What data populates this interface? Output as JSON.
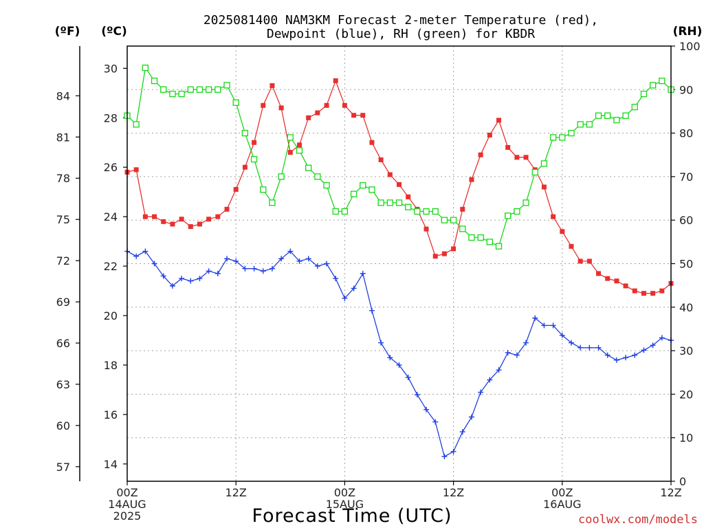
{
  "title_lines": [
    "2025081400 NAM3KM Forecast 2-meter Temperature (red),",
    "Dewpoint (blue), RH (green) for KBDR"
  ],
  "units": {
    "fahrenheit": "(ºF)",
    "celsius": "(ºC)",
    "rh": "(RH)"
  },
  "x_axis": {
    "label": "Forecast Time (UTC)",
    "ticks": [
      {
        "hour": 0,
        "lines": [
          "00Z",
          "14AUG",
          "2025"
        ]
      },
      {
        "hour": 12,
        "lines": [
          "12Z"
        ]
      },
      {
        "hour": 24,
        "lines": [
          "00Z",
          "15AUG"
        ]
      },
      {
        "hour": 36,
        "lines": [
          "12Z"
        ]
      },
      {
        "hour": 48,
        "lines": [
          "00Z",
          "16AUG"
        ]
      },
      {
        "hour": 60,
        "lines": [
          "12Z"
        ]
      }
    ]
  },
  "credit": "coolwx.com/models",
  "colors": {
    "temperature": "#e83030",
    "dewpoint": "#1f3fe0",
    "rh": "#16d816"
  },
  "chart_data": {
    "type": "line",
    "x": [
      0,
      1,
      2,
      3,
      4,
      5,
      6,
      7,
      8,
      9,
      10,
      11,
      12,
      13,
      14,
      15,
      16,
      17,
      18,
      19,
      20,
      21,
      22,
      23,
      24,
      25,
      26,
      27,
      28,
      29,
      30,
      31,
      32,
      33,
      34,
      35,
      36,
      37,
      38,
      39,
      40,
      41,
      42,
      43,
      44,
      45,
      46,
      47,
      48,
      49,
      50,
      51,
      52,
      53,
      54,
      55,
      56,
      57,
      58,
      59,
      60
    ],
    "celsius_ticks": [
      14,
      16,
      18,
      20,
      22,
      24,
      26,
      28,
      30
    ],
    "fahrenheit_ticks": [
      57,
      60,
      63,
      66,
      69,
      72,
      75,
      78,
      81,
      84
    ],
    "rh_ticks": [
      0,
      10,
      20,
      30,
      40,
      50,
      60,
      70,
      80,
      90,
      100
    ],
    "celsius_range": [
      13.3,
      30.9
    ],
    "rh_range": [
      0,
      100
    ],
    "series": [
      {
        "name": "Temperature",
        "unit": "C",
        "marker": "filled-square",
        "values": [
          25.8,
          25.9,
          24.0,
          24.0,
          23.8,
          23.7,
          23.9,
          23.6,
          23.7,
          23.9,
          24.0,
          24.3,
          25.1,
          26.0,
          27.0,
          28.5,
          29.3,
          28.4,
          26.6,
          26.9,
          28.0,
          28.2,
          28.5,
          29.5,
          28.5,
          28.1,
          28.1,
          27.0,
          26.3,
          25.7,
          25.3,
          24.8,
          24.3,
          23.5,
          22.4,
          22.5,
          22.7,
          24.3,
          25.5,
          26.5,
          27.3,
          27.9,
          26.8,
          26.4,
          26.4,
          25.9,
          25.2,
          24.0,
          23.4,
          22.8,
          22.2,
          22.2,
          21.7,
          21.5,
          21.4,
          21.2,
          21.0,
          20.9,
          20.9,
          21.0,
          21.3
        ]
      },
      {
        "name": "Dewpoint",
        "unit": "C",
        "marker": "plus",
        "values": [
          22.6,
          22.4,
          22.6,
          22.1,
          21.6,
          21.2,
          21.5,
          21.4,
          21.5,
          21.8,
          21.7,
          22.3,
          22.2,
          21.9,
          21.9,
          21.8,
          21.9,
          22.3,
          22.6,
          22.2,
          22.3,
          22.0,
          22.1,
          21.5,
          20.7,
          21.1,
          21.7,
          20.2,
          18.9,
          18.3,
          18.0,
          17.5,
          16.8,
          16.2,
          15.7,
          14.3,
          14.5,
          15.3,
          15.9,
          16.9,
          17.4,
          17.8,
          18.5,
          18.4,
          18.9,
          19.9,
          19.6,
          19.6,
          19.2,
          18.9,
          18.7,
          18.7,
          18.7,
          18.4,
          18.2,
          18.3,
          18.4,
          18.6,
          18.8,
          19.1,
          19.0
        ]
      },
      {
        "name": "RH",
        "unit": "%",
        "marker": "open-square",
        "values": [
          84,
          82,
          95,
          92,
          90,
          89,
          89,
          90,
          90,
          90,
          90,
          91,
          87,
          80,
          74,
          67,
          64,
          70,
          79,
          76,
          72,
          70,
          68,
          62,
          62,
          66,
          68,
          67,
          64,
          64,
          64,
          63,
          62,
          62,
          62,
          60,
          60,
          58,
          56,
          56,
          55,
          54,
          61,
          62,
          64,
          71,
          73,
          79,
          79,
          80,
          82,
          82,
          84,
          84,
          83,
          84,
          86,
          89,
          91,
          92,
          90
        ]
      }
    ]
  }
}
